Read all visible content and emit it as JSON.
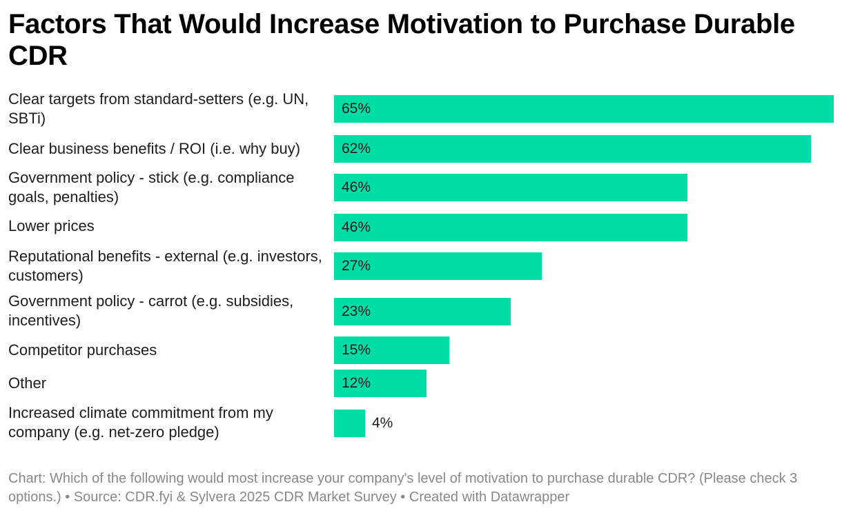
{
  "title": "Factors That Would Increase Motivation to Purchase Durable CDR",
  "footer": "Chart: Which of the following would most increase your company's level of motivation to purchase durable CDR? (Please check 3 options.) • Source: CDR.fyi & Sylvera 2025 CDR Market Survey • Created with Datawrapper",
  "colors": {
    "bar": "#00dca6"
  },
  "chart_data": {
    "type": "bar",
    "orientation": "horizontal",
    "categories": [
      "Clear targets from standard-setters (e.g. UN, SBTi)",
      "Clear business benefits / ROI (i.e. why buy)",
      "Government policy - stick (e.g. compliance goals, penalties)",
      "Lower prices",
      "Reputational benefits - external (e.g. investors, customers)",
      "Government policy - carrot (e.g. subsidies, incentives)",
      "Competitor purchases",
      "Other",
      "Increased climate commitment from my company (e.g. net-zero pledge)"
    ],
    "values": [
      65,
      62,
      46,
      46,
      27,
      23,
      15,
      12,
      4
    ],
    "value_labels": [
      "65%",
      "62%",
      "46%",
      "46%",
      "27%",
      "23%",
      "15%",
      "12%",
      "4%"
    ],
    "xlim": [
      0,
      65
    ],
    "grid": false,
    "legend": "none"
  }
}
